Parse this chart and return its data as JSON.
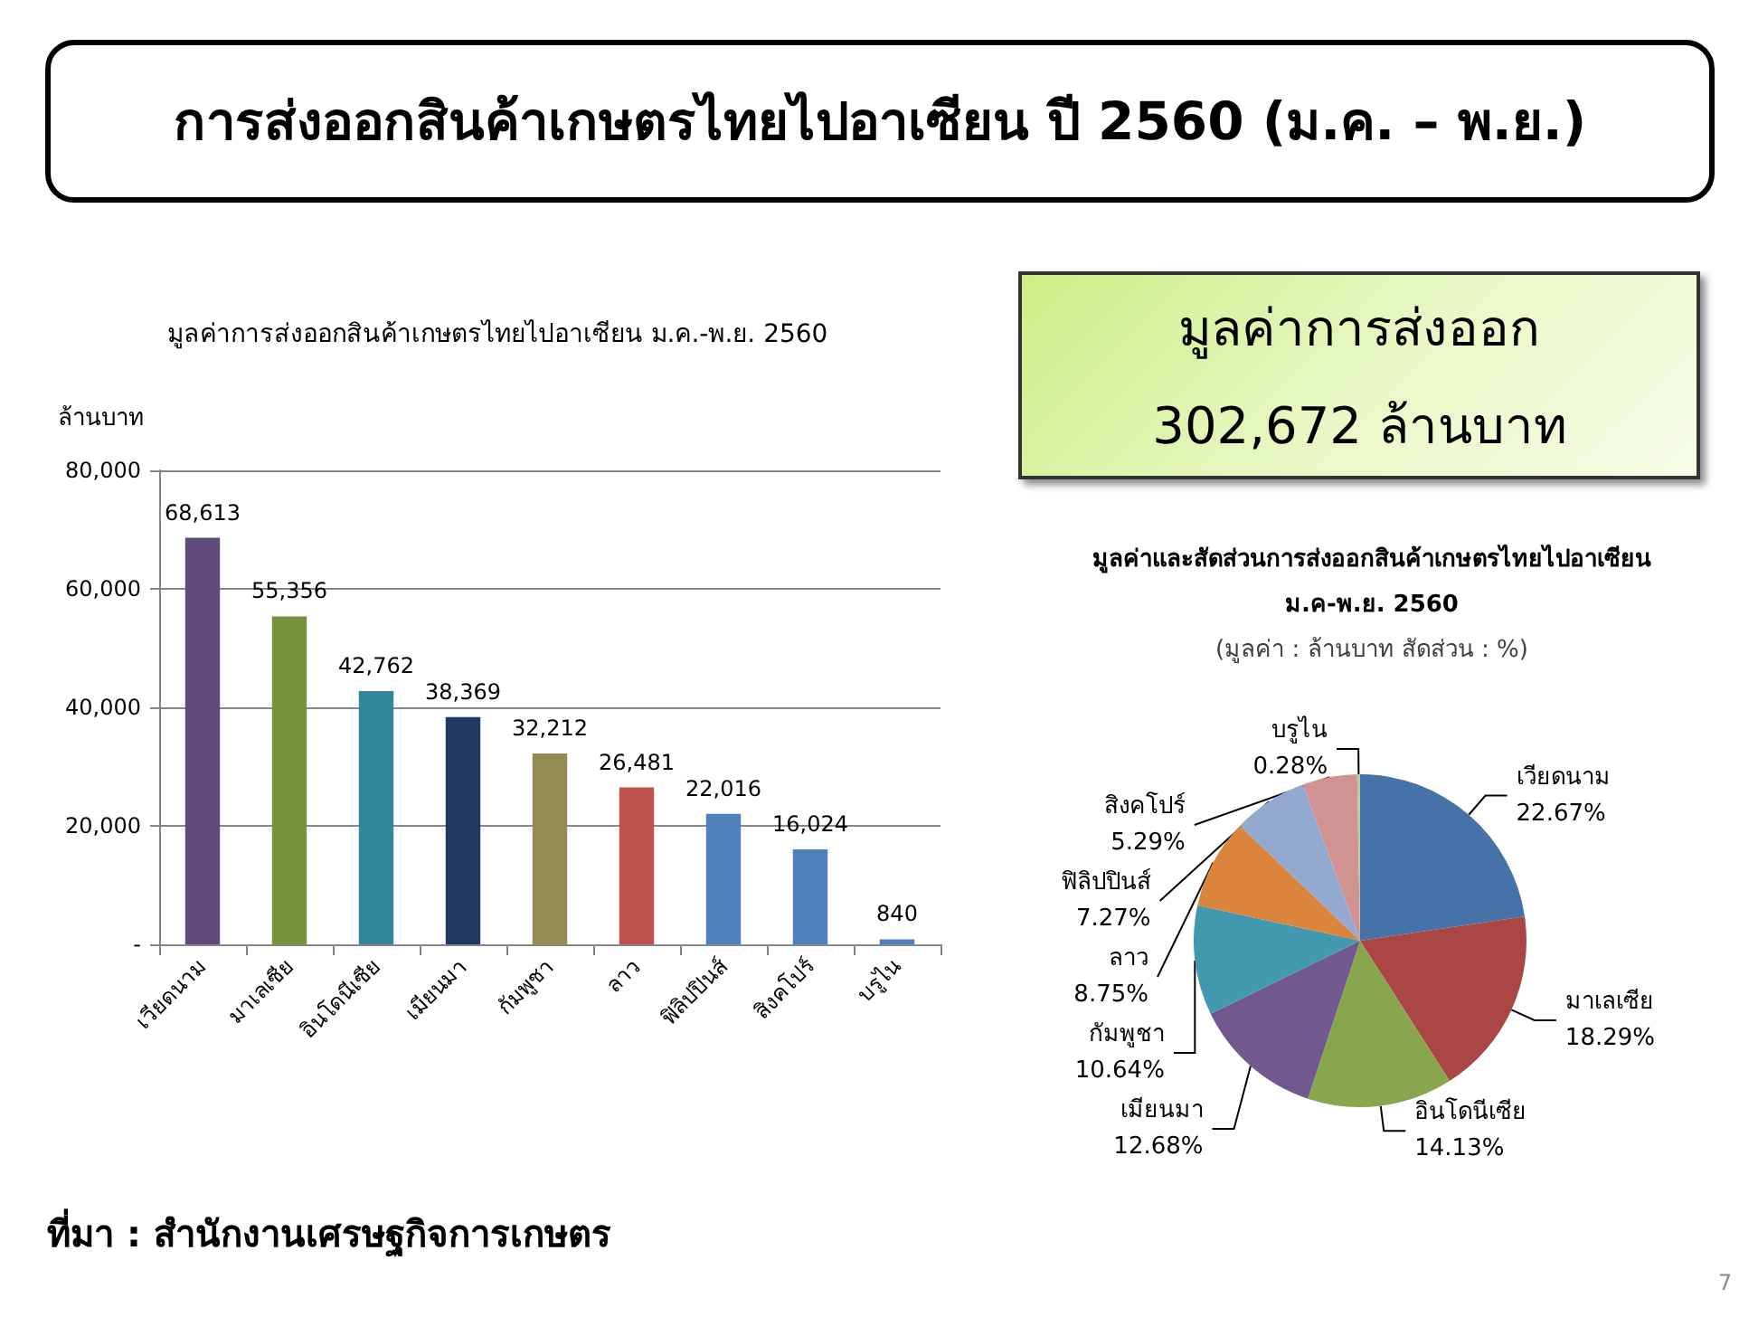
{
  "chart_data": [
    {
      "type": "other",
      "title": "การส่งออกสินค้าเกษตรไทยไปอาเซียน ปี 2560 (ม.ค. – พ.ย.)",
      "annotations": [
        "ที่มา : สำนักงานเศรษฐกิจการเกษตร",
        "7"
      ]
    },
    {
      "type": "bar",
      "title": "มูลค่าการส่งออกสินค้าเกษตรไทยไปอาเซียน ม.ค.-พ.ย. 2560",
      "ylabel": "ล้านบาท",
      "categories": [
        "เวียดนาม",
        "มาเลเซีย",
        "อินโดนีเซีย",
        "เมียนมา",
        "กัมพูชา",
        "ลาว",
        "ฟิลิปปินส์",
        "สิงคโปร์",
        "บรูไน"
      ],
      "values": [
        68613,
        55356,
        42762,
        38369,
        32212,
        26481,
        22016,
        16024,
        840
      ],
      "colors": [
        "#604a7b",
        "#77933c",
        "#31859c",
        "#1f3864",
        "#948a54",
        "#c0504d",
        "#4f81bd",
        "#4f81bd",
        "#4f81bd"
      ],
      "value_labels": [
        "68,613",
        "55,356",
        "42,762",
        "38,369",
        "32,212",
        "26,481",
        "22,016",
        "16,024",
        "840"
      ],
      "ylim": [
        0,
        80000
      ],
      "yticks": [
        {
          "value": 0,
          "label": "-"
        },
        {
          "value": 20000,
          "label": "20,000"
        },
        {
          "value": 40000,
          "label": "40,000"
        },
        {
          "value": 60000,
          "label": "60,000"
        },
        {
          "value": 80000,
          "label": "80,000"
        }
      ],
      "grid": "y"
    },
    {
      "type": "other",
      "title": "มูลค่าการส่งออก",
      "annotations": [
        "302,672 ล้านบาท"
      ]
    },
    {
      "type": "pie",
      "title": "มูลค่าและสัดส่วนการส่งออกสินค้าเกษตรไทยไปอาเซียน\nม.ค-พ.ย. 2560",
      "subtitle": "(มูลค่า : ล้านบาท สัดส่วน : %)",
      "categories": [
        "เวียดนาม",
        "มาเลเซีย",
        "อินโดนีเซีย",
        "เมียนมา",
        "กัมพูชา",
        "ลาว",
        "ฟิลิปปินส์",
        "สิงคโปร์",
        "บรูไน"
      ],
      "values": [
        22.67,
        18.29,
        14.13,
        12.68,
        10.64,
        8.75,
        7.27,
        5.29,
        0.28
      ],
      "colors": [
        "#4572a7",
        "#aa4643",
        "#89a54e",
        "#71588f",
        "#4198af",
        "#db843d",
        "#93a9cf",
        "#d19392",
        "#b9cd96"
      ],
      "value_labels": [
        "22.67%",
        "18.29%",
        "14.13%",
        "12.68%",
        "10.64%",
        "8.75%",
        "7.27%",
        "5.29%",
        "0.28%"
      ]
    }
  ]
}
